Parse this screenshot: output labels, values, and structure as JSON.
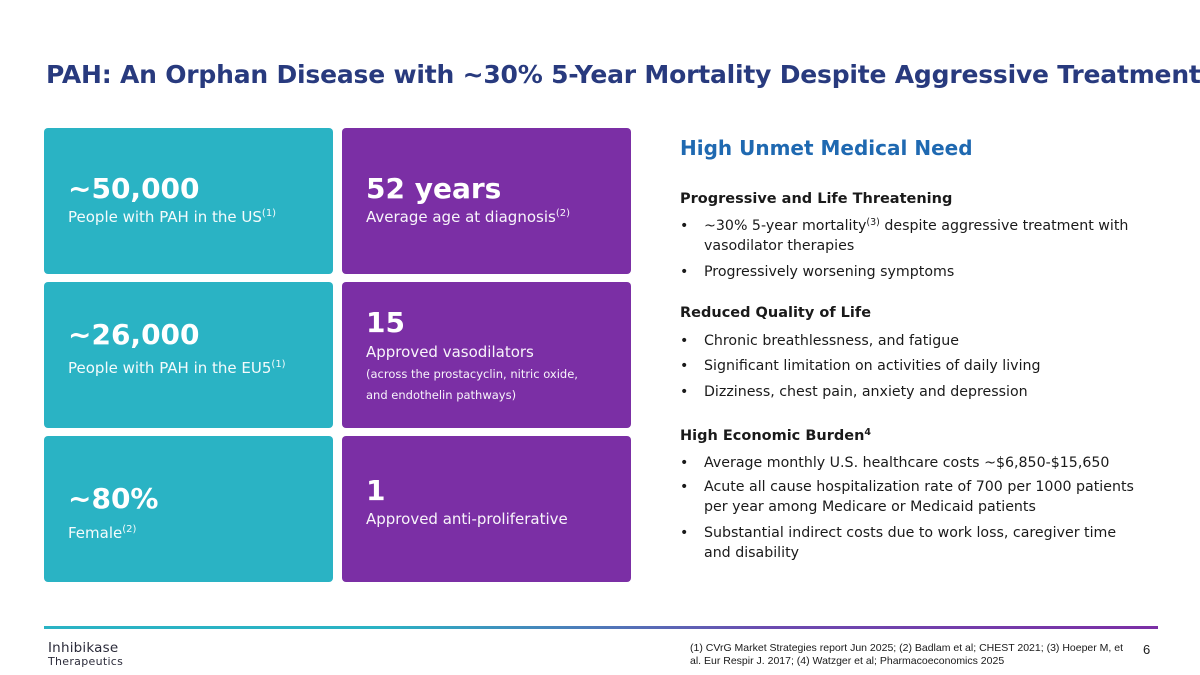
{
  "title": "PAH: An Orphan Disease with ~30% 5-Year Mortality Despite Aggressive Treatment",
  "colors": {
    "teal": "#2ab3c4",
    "purple": "#7b2fa5",
    "title_blue": "#283a7e",
    "heading_blue": "#1f69b1"
  },
  "stats": {
    "us": {
      "value": "~50,000",
      "label": "People with PAH in the US",
      "ref": "(1)"
    },
    "age": {
      "value": "52 years",
      "label": "Average age at diagnosis",
      "ref": "(2)"
    },
    "eu5": {
      "value": "~26,000",
      "label": "People with PAH in the EU5",
      "ref": "(1)"
    },
    "vasodilators": {
      "value": "15",
      "label": "Approved vasodilators",
      "note_line1": "(across the prostacyclin, nitric oxide,",
      "note_line2": "and endothelin pathways)"
    },
    "female": {
      "value": "~80%",
      "label": "Female",
      "ref": "(2)"
    },
    "antiproliferative": {
      "value": "1",
      "label": "Approved anti-proliferative"
    }
  },
  "need": {
    "title": "High Unmet Medical Need",
    "progressive": {
      "heading": "Progressive and Life Threatening",
      "b1_pre": "~30% 5-year mortality",
      "b1_ref": "(3)",
      "b1_post": " despite aggressive treatment with vasodilator therapies",
      "b2": "Progressively worsening symptoms"
    },
    "quality": {
      "heading": "Reduced Quality of Life",
      "b1": "Chronic breathlessness, and fatigue",
      "b2": "Significant limitation on activities of daily living",
      "b3": "Dizziness, chest pain, anxiety and depression"
    },
    "economic": {
      "heading": "High Economic Burden",
      "ref": "4",
      "b1": "Average monthly U.S. healthcare costs ~$6,850-$15,650",
      "b2": "Acute all cause hospitalization rate of 700 per 1000 patients per year among Medicare or Medicaid patients",
      "b3": "Substantial indirect costs due to work loss, caregiver time and disability"
    }
  },
  "footer": {
    "logo_main": "Inhibikase",
    "logo_sub": "Therapeutics",
    "references": "(1) CVrG Market Strategies report Jun 2025; (2) Badlam et al; CHEST 2021; (3)  Hoeper M, et al. Eur Respir J. 2017; (4) Watzger et al; Pharmacoeconomics 2025",
    "page": "6"
  }
}
